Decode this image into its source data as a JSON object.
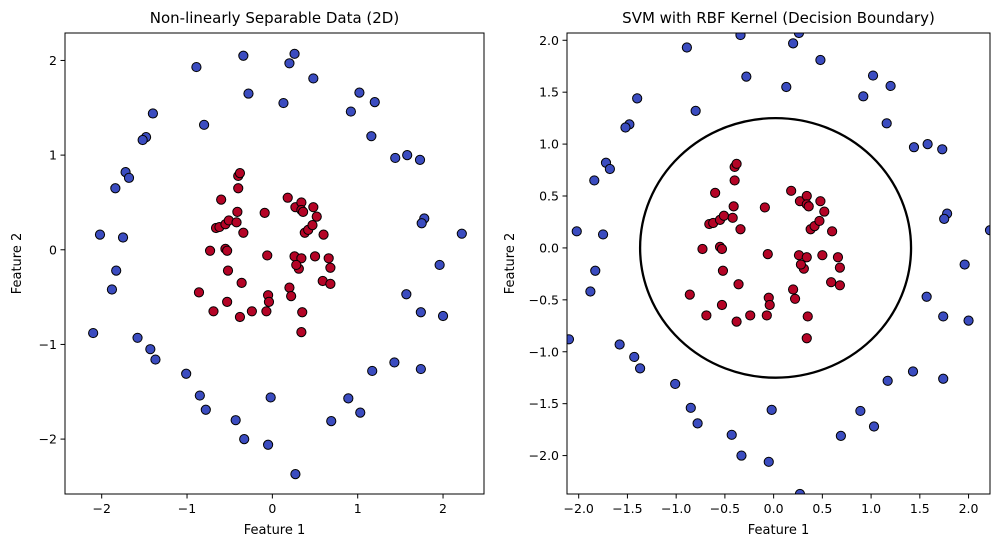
{
  "colors": {
    "blue": "#3b4cc0",
    "red": "#b40426",
    "edge": "#000000",
    "boundary": "#000000",
    "background": "#ffffff"
  },
  "chart_data": [
    {
      "type": "scatter",
      "title": "Non-linearly Separable Data (2D)",
      "xlabel": "Feature 1",
      "ylabel": "Feature 2",
      "xlim": [
        -2.43,
        2.48
      ],
      "ylim": [
        -2.58,
        2.29
      ],
      "xticks": [
        -2,
        -1,
        0,
        1,
        2
      ],
      "yticks": [
        -2,
        -1,
        0,
        1,
        2
      ],
      "xtick_labels": [
        "−2",
        "−1",
        "0",
        "1",
        "2"
      ],
      "ytick_labels": [
        "−2",
        "−1",
        "0",
        "1",
        "2"
      ],
      "grid": false,
      "legend": "none"
    },
    {
      "type": "scatter",
      "title": "SVM with RBF Kernel (Decision Boundary)",
      "xlabel": "Feature 1",
      "ylabel": "Feature 2",
      "xlim": [
        -2.12,
        2.22
      ],
      "ylim": [
        -2.37,
        2.07
      ],
      "xticks": [
        -2.0,
        -1.5,
        -1.0,
        -0.5,
        0.0,
        0.5,
        1.0,
        1.5,
        2.0
      ],
      "yticks": [
        -2.0,
        -1.5,
        -1.0,
        -0.5,
        0.0,
        0.5,
        1.0,
        1.5,
        2.0
      ],
      "xtick_labels": [
        "−2.0",
        "−1.5",
        "−1.0",
        "−0.5",
        "0.0",
        "0.5",
        "1.0",
        "1.5",
        "2.0"
      ],
      "ytick_labels": [
        "−2.0",
        "−1.5",
        "−1.0",
        "−0.5",
        "0.0",
        "0.5",
        "1.0",
        "1.5",
        "2.0"
      ],
      "grid": false,
      "legend": "none",
      "decision_boundary": {
        "shape": "closed-curve",
        "center": [
          0.02,
          0.0
        ],
        "rx": 1.39,
        "ry": 1.25
      }
    }
  ],
  "points": {
    "blue": [
      [
        0.26,
        2.07
      ],
      [
        -0.34,
        2.05
      ],
      [
        0.2,
        1.97
      ],
      [
        0.48,
        1.81
      ],
      [
        -0.89,
        1.93
      ],
      [
        -0.28,
        1.65
      ],
      [
        0.13,
        1.55
      ],
      [
        1.02,
        1.66
      ],
      [
        0.92,
        1.46
      ],
      [
        1.2,
        1.56
      ],
      [
        -0.8,
        1.32
      ],
      [
        -1.4,
        1.44
      ],
      [
        -1.48,
        1.19
      ],
      [
        -1.52,
        1.16
      ],
      [
        1.16,
        1.2
      ],
      [
        1.44,
        0.97
      ],
      [
        1.58,
        1.0
      ],
      [
        1.73,
        0.95
      ],
      [
        -1.72,
        0.82
      ],
      [
        -1.68,
        0.76
      ],
      [
        -1.84,
        0.65
      ],
      [
        1.78,
        0.33
      ],
      [
        1.75,
        0.28
      ],
      [
        2.22,
        0.17
      ],
      [
        -2.02,
        0.16
      ],
      [
        -1.75,
        0.13
      ],
      [
        -1.83,
        -0.22
      ],
      [
        1.96,
        -0.16
      ],
      [
        -1.88,
        -0.42
      ],
      [
        1.57,
        -0.47
      ],
      [
        1.74,
        -0.66
      ],
      [
        2.0,
        -0.7
      ],
      [
        -2.1,
        -0.88
      ],
      [
        -1.58,
        -0.93
      ],
      [
        -1.43,
        -1.05
      ],
      [
        -1.37,
        -1.16
      ],
      [
        1.43,
        -1.19
      ],
      [
        1.17,
        -1.28
      ],
      [
        1.74,
        -1.26
      ],
      [
        -1.01,
        -1.31
      ],
      [
        -0.85,
        -1.54
      ],
      [
        0.89,
        -1.57
      ],
      [
        -0.78,
        -1.69
      ],
      [
        0.69,
        -1.81
      ],
      [
        1.03,
        -1.72
      ],
      [
        -0.43,
        -1.8
      ],
      [
        -0.02,
        -1.56
      ],
      [
        -0.33,
        -2.0
      ],
      [
        -0.05,
        -2.06
      ],
      [
        0.27,
        -2.37
      ]
    ],
    "red": [
      [
        -0.4,
        0.78
      ],
      [
        -0.38,
        0.81
      ],
      [
        -0.4,
        0.65
      ],
      [
        0.18,
        0.55
      ],
      [
        -0.6,
        0.53
      ],
      [
        -0.66,
        0.23
      ],
      [
        -0.62,
        0.24
      ],
      [
        -0.55,
        0.27
      ],
      [
        -0.51,
        0.31
      ],
      [
        -0.42,
        0.29
      ],
      [
        -0.41,
        0.4
      ],
      [
        -0.09,
        0.39
      ],
      [
        0.27,
        0.45
      ],
      [
        0.34,
        0.5
      ],
      [
        0.34,
        0.42
      ],
      [
        0.36,
        0.4
      ],
      [
        0.48,
        0.45
      ],
      [
        0.52,
        0.35
      ],
      [
        0.38,
        0.18
      ],
      [
        0.42,
        0.21
      ],
      [
        0.47,
        0.26
      ],
      [
        0.6,
        0.16
      ],
      [
        -0.34,
        0.18
      ],
      [
        -0.73,
        -0.01
      ],
      [
        -0.55,
        0.01
      ],
      [
        -0.53,
        -0.01
      ],
      [
        -0.06,
        -0.06
      ],
      [
        0.26,
        -0.07
      ],
      [
        0.34,
        -0.09
      ],
      [
        0.5,
        -0.07
      ],
      [
        0.66,
        -0.09
      ],
      [
        0.68,
        -0.19
      ],
      [
        0.31,
        -0.2
      ],
      [
        0.28,
        -0.16
      ],
      [
        -0.52,
        -0.22
      ],
      [
        0.59,
        -0.33
      ],
      [
        0.68,
        -0.36
      ],
      [
        -0.36,
        -0.35
      ],
      [
        -0.86,
        -0.45
      ],
      [
        0.2,
        -0.4
      ],
      [
        -0.05,
        -0.48
      ],
      [
        -0.04,
        -0.55
      ],
      [
        0.22,
        -0.49
      ],
      [
        -0.53,
        -0.55
      ],
      [
        -0.69,
        -0.65
      ],
      [
        -0.07,
        -0.65
      ],
      [
        -0.24,
        -0.65
      ],
      [
        -0.38,
        -0.71
      ],
      [
        0.35,
        -0.66
      ],
      [
        0.34,
        -0.87
      ]
    ]
  }
}
